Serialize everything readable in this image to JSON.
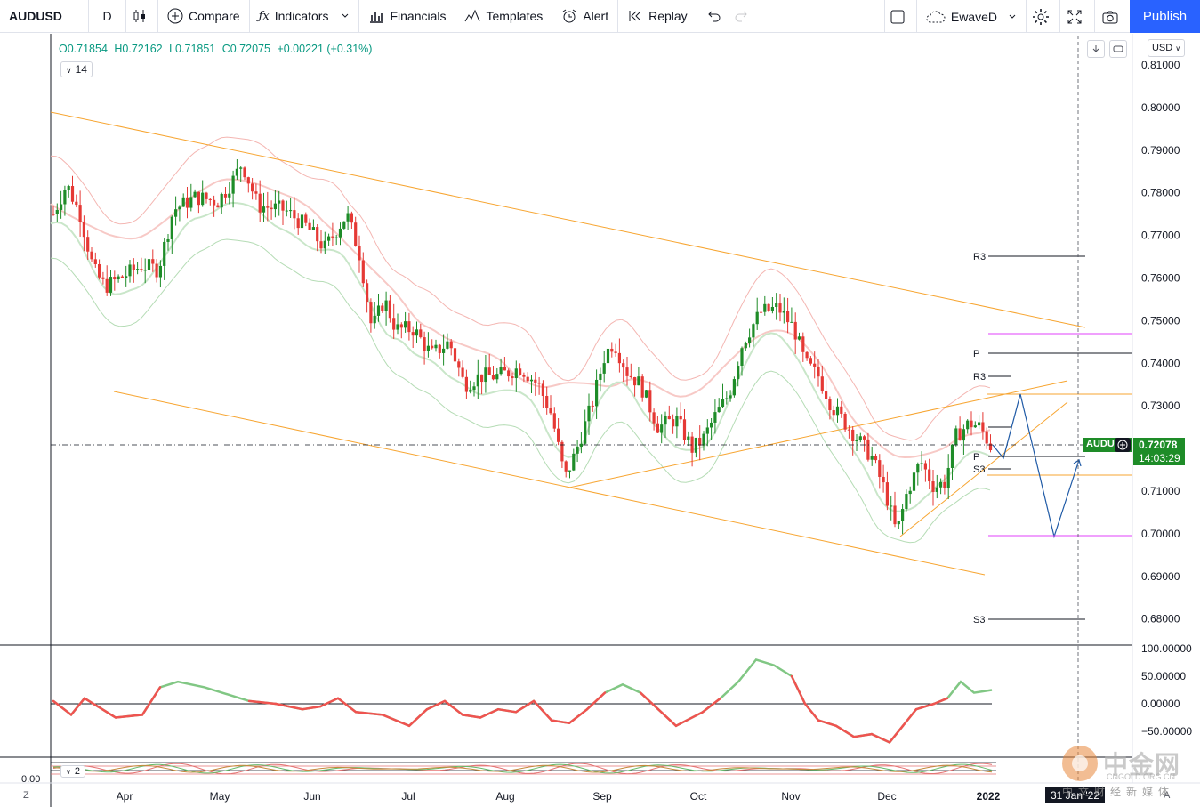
{
  "toolbar": {
    "symbol": "AUDUSD",
    "interval": "D",
    "compare": "Compare",
    "indicators": "Indicators",
    "financials": "Financials",
    "templates": "Templates",
    "alert": "Alert",
    "replay": "Replay",
    "layout_name": "EwaveD",
    "publish": "Publish"
  },
  "legend": {
    "open": "O0.71854",
    "high": "H0.72162",
    "low": "L0.71851",
    "close": "C0.72075",
    "change": "+0.00221 (+0.31%)",
    "ma_period": "14",
    "sub_count": "2"
  },
  "currency_button": "USD",
  "price_axis": {
    "labels": [
      "0.81000",
      "0.80000",
      "0.79000",
      "0.78000",
      "0.77000",
      "0.76000",
      "0.75000",
      "0.74000",
      "0.73000",
      "0.72000",
      "0.71000",
      "0.70000",
      "0.69000",
      "0.68000"
    ],
    "values": [
      0.81,
      0.8,
      0.79,
      0.78,
      0.77,
      0.76,
      0.75,
      0.74,
      0.73,
      0.72,
      0.71,
      0.7,
      0.69,
      0.68
    ],
    "current_price": "0.72078",
    "countdown": "14:03:29",
    "symbol_tag": "AUDU"
  },
  "osc_axis": {
    "labels": [
      "100.00000",
      "50.00000",
      "0.00000",
      "−50.00000"
    ],
    "values": [
      100,
      50,
      0,
      -50
    ],
    "bottom_label": "0.00"
  },
  "time_axis": {
    "labels": [
      "Apr",
      "May",
      "Jun",
      "Jul",
      "Aug",
      "Sep",
      "Oct",
      "Nov",
      "Dec",
      "2022"
    ],
    "cursor_date": "31 Jan '22"
  },
  "pivot_labels": {
    "r3_top": "R3",
    "p_main": "P",
    "r3_mid": "R3",
    "p_low": "P",
    "s3_mid": "S3",
    "s3_bottom": "S3"
  },
  "corner_labels": {
    "left": "Z",
    "right": "A"
  },
  "watermark": {
    "brand": "中金网",
    "url": "CNGOLD.ORG.CN",
    "cn": "中文财经新媒体"
  },
  "colors": {
    "up": "#1e8c28",
    "down": "#e53935",
    "trendline": "#f7a531",
    "projection": "#1f5aa6",
    "pivot_magenta": "#e040fb",
    "accent": "#2962ff"
  }
}
